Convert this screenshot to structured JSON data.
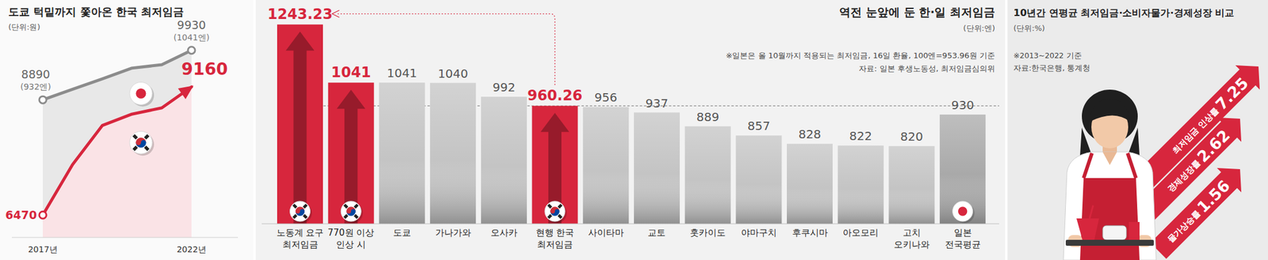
{
  "chart_data": [
    {
      "type": "line",
      "title": "도쿄 턱밑까지 쫓아온 한국 최저임금",
      "subtitle": "(단위:원)",
      "categories": [
        "2017년",
        null,
        null,
        null,
        null,
        "2022년"
      ],
      "ylim": [
        6000,
        10300
      ],
      "tick_labels": "x",
      "series": [
        {
          "color": "#8c8c8c",
          "marker": "circle",
          "values": [
            8890,
            9110,
            9330,
            9556,
            9626,
            9930
          ],
          "value_labels": [
            "8890",
            null,
            null,
            null,
            null,
            "9930"
          ],
          "converted_labels": [
            "(932엔)",
            null,
            null,
            null,
            null,
            "(1041엔)"
          ]
        },
        {
          "color": "#d7263d",
          "marker": "arrow",
          "values": [
            6470,
            7530,
            8350,
            8590,
            8720,
            9160
          ],
          "value_labels": [
            "6470",
            null,
            null,
            null,
            null,
            "9160"
          ]
        }
      ]
    },
    {
      "type": "bar",
      "title": "역전 눈앞에 둔 한·일 최저임금",
      "subtitle": "(단위:엔)",
      "notes": [
        "※일본은 올 10월까지 적용되는 최저임금, 16일 환율, 100엔=953.96원 기준",
        "자료: 일본 후생노동성, 최저임금심의위"
      ],
      "categories": [
        "노동계 요구\n최저임금",
        "770원 이상\n인상 시",
        "도쿄",
        "가나가와",
        "오사카",
        "현행 한국\n최저임금",
        "사이타마",
        "교토",
        "홋카이도",
        "야마구치",
        "후쿠시마",
        "아오모리",
        "고치\n오키나와",
        "일본\n전국평균"
      ],
      "values": [
        1243.23,
        1041,
        1041,
        1040,
        992,
        960.26,
        956,
        937,
        889,
        857,
        828,
        822,
        820,
        930
      ],
      "colors": [
        "#d7263d",
        "#d7263d",
        "#c4c4c4",
        "#c4c4c4",
        "#c4c4c4",
        "#d7263d",
        "#c4c4c4",
        "#c4c4c4",
        "#c4c4c4",
        "#c4c4c4",
        "#c4c4c4",
        "#c4c4c4",
        "#c4c4c4",
        "#a9a9a9"
      ],
      "reference_line": {
        "value": 960.26
      },
      "data_labels": true,
      "ylim": [
        550,
        1250
      ],
      "tick_labels": false
    },
    {
      "type": "bar",
      "title": "10년간 연평균 최저임금·소비자물가·경제성장 비교",
      "subtitle": "(단위:%)",
      "notes": [
        "※2013~2022 기준",
        "자료:한국은행, 통계청"
      ],
      "categories": [
        "최저임금 인상률",
        "경제성장률",
        "물가상승률"
      ],
      "values": [
        7.25,
        2.62,
        1.56
      ],
      "color": "#d7263d",
      "data_labels": true,
      "ylim": [
        -6,
        8
      ],
      "tick_labels": false
    }
  ]
}
